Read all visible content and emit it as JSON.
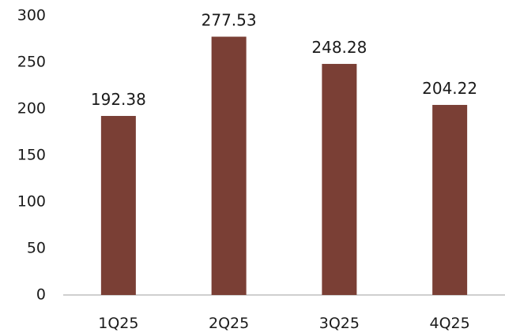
{
  "chart_data": {
    "type": "bar",
    "title": "",
    "xlabel": "",
    "ylabel": "",
    "categories": [
      "1Q25",
      "2Q25",
      "3Q25",
      "4Q25"
    ],
    "values": [
      192.38,
      277.53,
      248.28,
      204.22
    ],
    "value_labels": [
      "192.38",
      "277.53",
      "248.28",
      "204.22"
    ],
    "ylim": [
      0,
      300
    ],
    "y_ticks": [
      0,
      50,
      100,
      150,
      200,
      250,
      300
    ],
    "grid": false,
    "legend": "none",
    "colors": {
      "bar": "#7a3f35",
      "axis": "#bfbfbf",
      "text": "#1a1a1a"
    }
  }
}
